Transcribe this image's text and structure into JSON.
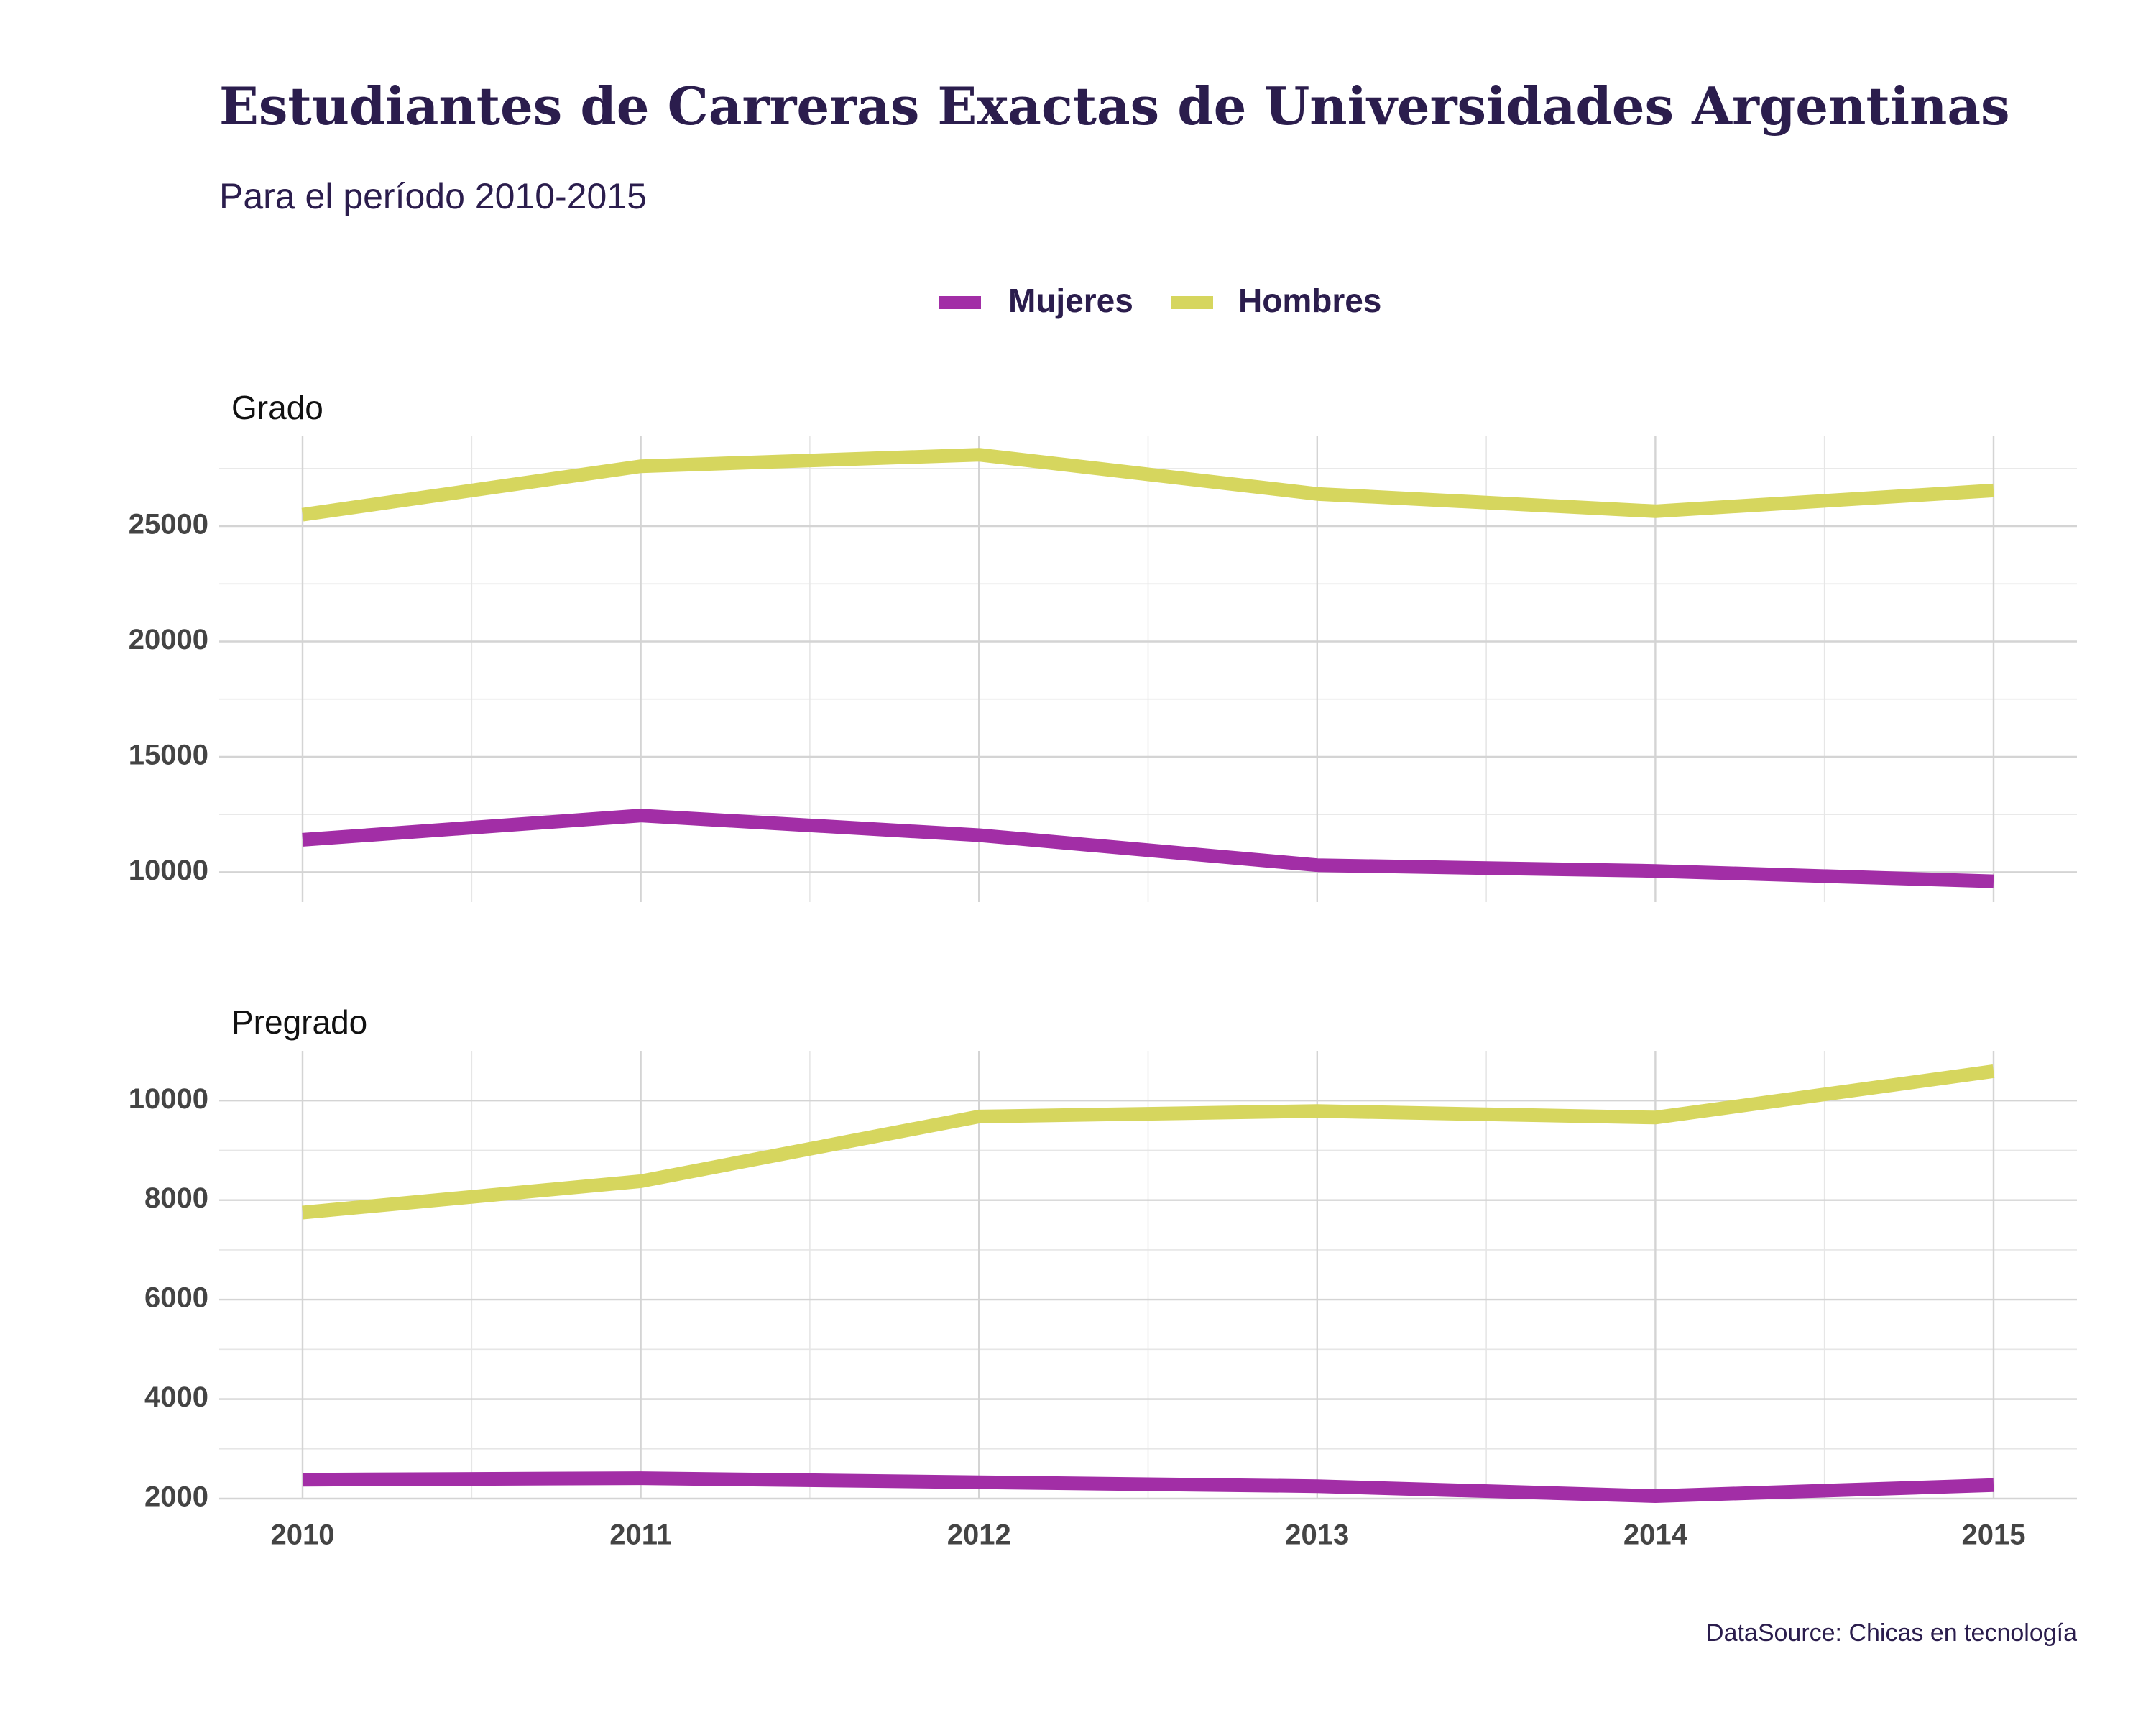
{
  "chart_data": {
    "type": "line",
    "title": "Estudiantes de Carreras Exactas de Universidades Argentinas",
    "subtitle": "Para el período 2010-2015",
    "caption": "DataSource: Chicas en tecnología",
    "legend": {
      "position": "top",
      "entries": [
        {
          "name": "Mujeres",
          "color": "#a22ea6"
        },
        {
          "name": "Hombres",
          "color": "#d6d65e"
        }
      ]
    },
    "x": [
      2010,
      2011,
      2012,
      2013,
      2014,
      2015
    ],
    "x_tick_labels": [
      "2010",
      "2011",
      "2012",
      "2013",
      "2014",
      "2015"
    ],
    "grid": true,
    "panels": [
      {
        "title": "Grado",
        "ylim": [
          8700,
          28900
        ],
        "y_ticks": [
          10000,
          15000,
          20000,
          25000
        ],
        "y_tick_labels": [
          "10000",
          "15000",
          "20000",
          "25000"
        ],
        "series": [
          {
            "name": "Mujeres",
            "color": "#a22ea6",
            "values": [
              11400,
              12450,
              11600,
              10300,
              10050,
              9600
            ]
          },
          {
            "name": "Hombres",
            "color": "#d6d65e",
            "values": [
              25500,
              27600,
              28100,
              26400,
              25650,
              26550
            ]
          }
        ]
      },
      {
        "title": "Pregrado",
        "ylim": [
          2000,
          11000
        ],
        "y_ticks": [
          2000,
          4000,
          6000,
          8000,
          10000
        ],
        "y_tick_labels": [
          "2000",
          "4000",
          "6000",
          "8000",
          "10000"
        ],
        "series": [
          {
            "name": "Mujeres",
            "color": "#a22ea6",
            "values": [
              2380,
              2410,
              2330,
              2250,
              2050,
              2270
            ]
          },
          {
            "name": "Hombres",
            "color": "#d6d65e",
            "values": [
              7750,
              8380,
              9680,
              9790,
              9660,
              10590
            ]
          }
        ]
      }
    ]
  }
}
